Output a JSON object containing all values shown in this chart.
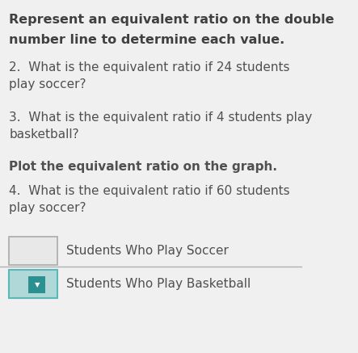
{
  "background_color": "#f0f0f0",
  "title_line1": "Represent an equivalent ratio on the double",
  "title_line2": "number line to determine each value.",
  "q2": "2.  What is the equivalent ratio if 24 students\nplay soccer?",
  "q3": "3.  What is the equivalent ratio if 4 students play\nbasketball?",
  "bold_line": "Plot the equivalent ratio on the graph.",
  "q4": "4.  What is the equivalent ratio if 60 students\nplay soccer?",
  "legend1_label": "Students Who Play Soccer",
  "legend2_label": "Students Who Play Basketball",
  "box1_color": "#e8e8e8",
  "box2_color": "#b0d8d8",
  "box2_marker_color": "#2a9090",
  "text_color": "#505050",
  "title_color": "#404040",
  "divider_color": "#b0b0b0"
}
